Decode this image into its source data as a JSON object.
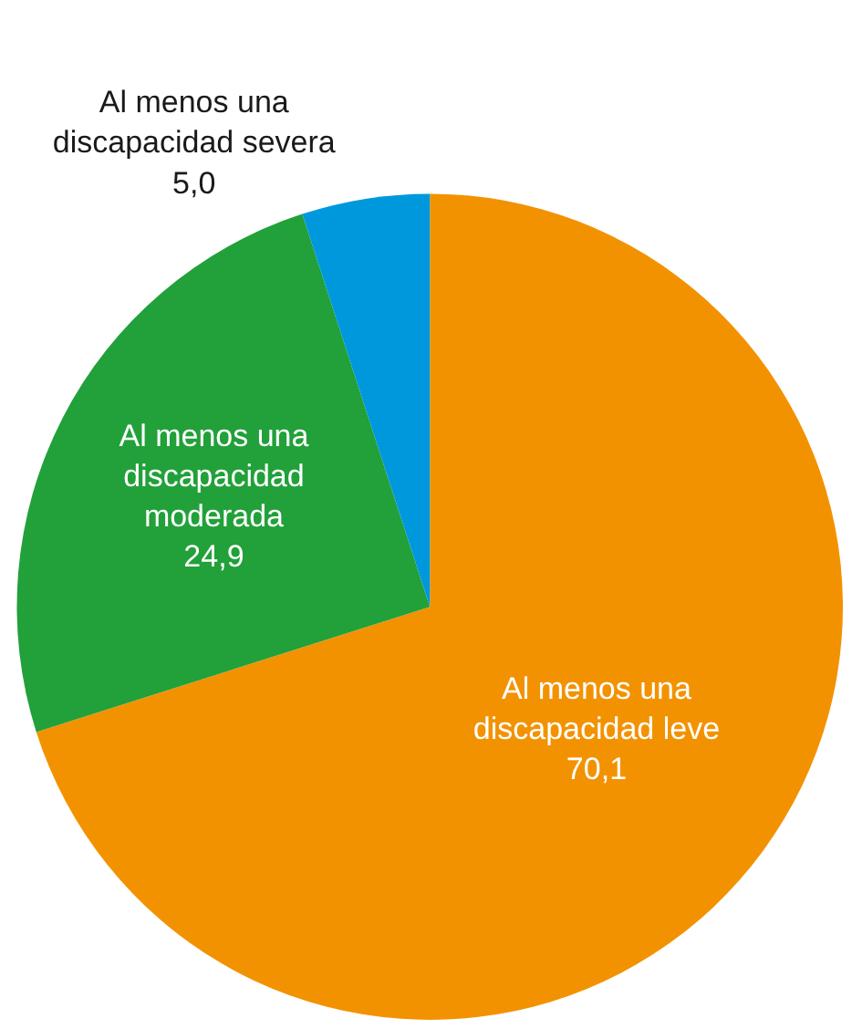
{
  "chart_data": {
    "type": "pie",
    "categories": [
      "Al menos una discapacidad leve",
      "Al menos una discapacidad moderada",
      "Al menos una discapacidad severa"
    ],
    "values": [
      70.1,
      24.9,
      5.0
    ],
    "value_labels": [
      "70,1",
      "24,9",
      "5,0"
    ],
    "colors": [
      "#f39200",
      "#22a03a",
      "#0098dc"
    ],
    "legend": false
  }
}
